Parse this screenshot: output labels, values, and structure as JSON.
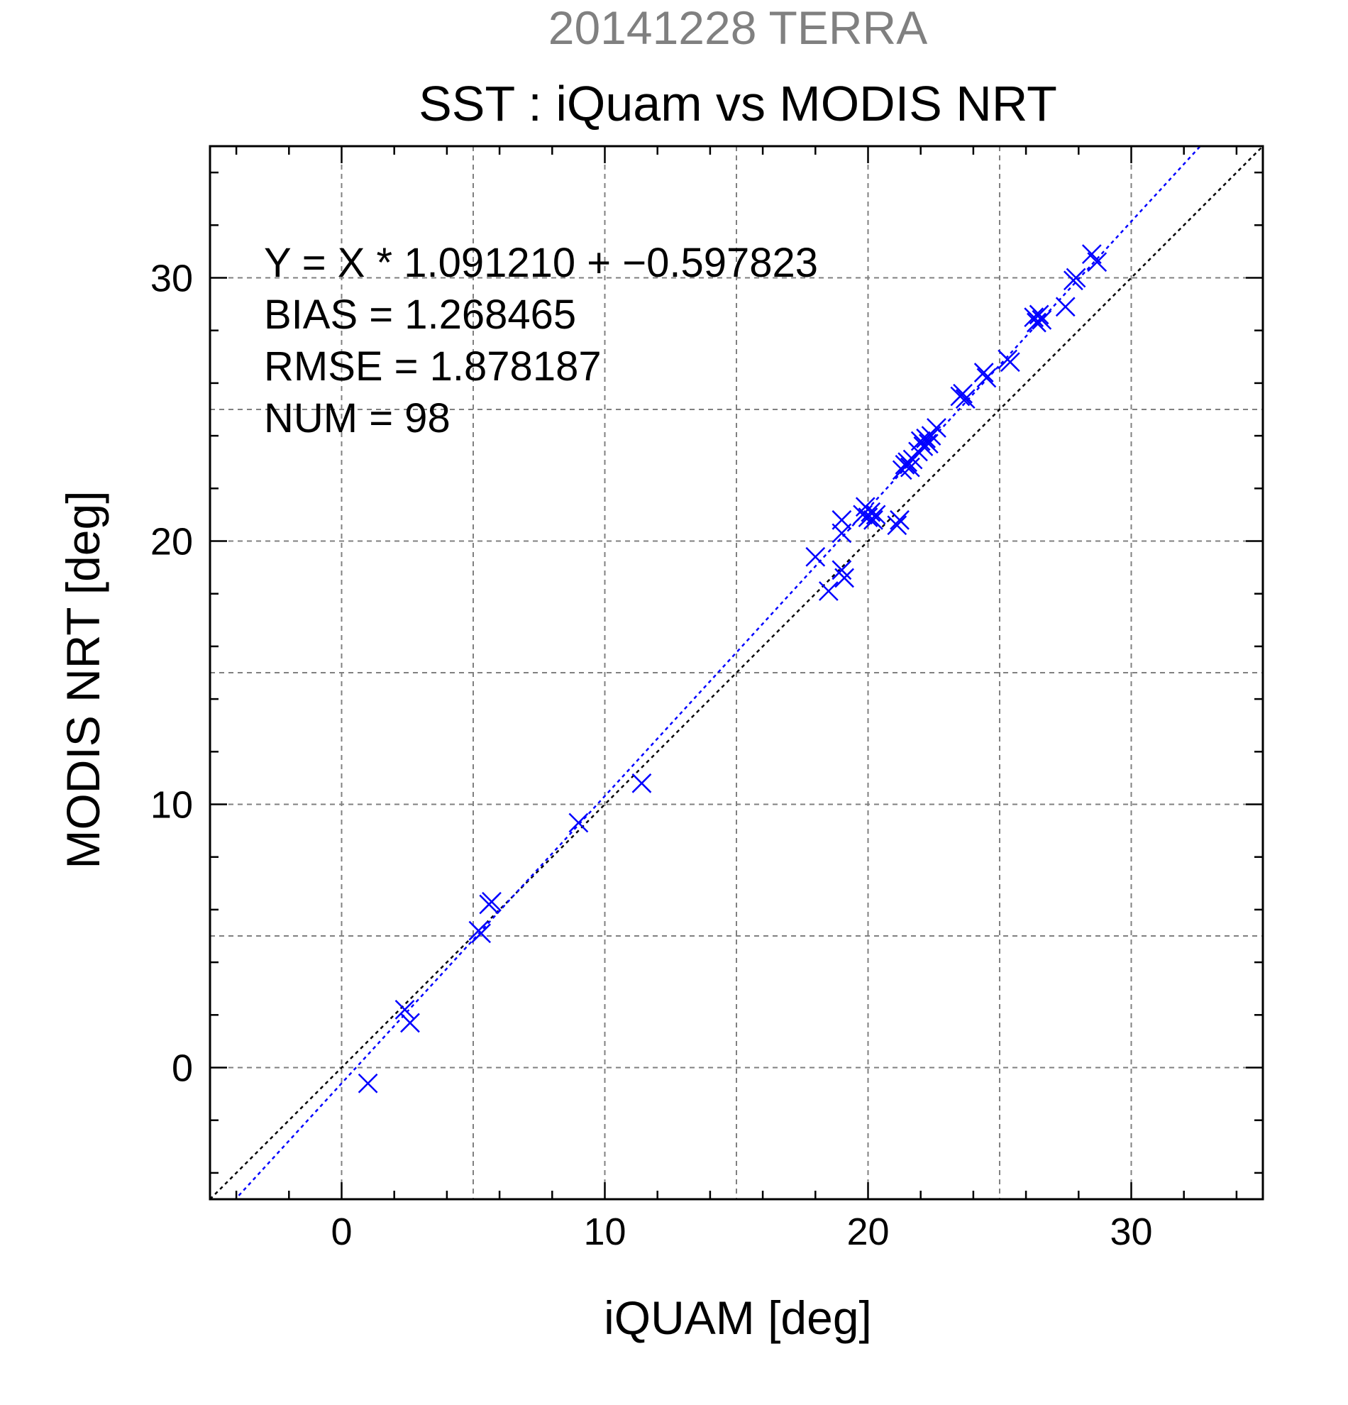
{
  "chart_data": {
    "type": "scatter",
    "supertitle": "20141228 TERRA",
    "title": "SST : iQuam vs MODIS NRT",
    "xlabel": "iQUAM [deg]",
    "ylabel": "MODIS NRT [deg]",
    "xlim": [
      -5,
      35
    ],
    "ylim": [
      -5,
      35
    ],
    "x_ticks": [
      0,
      10,
      20,
      30
    ],
    "y_ticks": [
      0,
      10,
      20,
      30
    ],
    "grid": true,
    "annotations": [
      "Y = X * 1.091210 + −0.597823",
      "BIAS = 1.268465",
      "RMSE = 1.878187",
      "NUM = 98"
    ],
    "regression": {
      "slope": 1.09121,
      "intercept": -0.597823
    },
    "identity_line": true,
    "colors": {
      "points": "#0000ff",
      "fit_line": "#0000ff",
      "identity_line": "#000000",
      "grid": "#808080",
      "supertitle": "#808080"
    },
    "series": [
      {
        "marker": "x",
        "points": [
          [
            1.0,
            -0.6
          ],
          [
            2.4,
            2.2
          ],
          [
            2.6,
            1.7
          ],
          [
            5.2,
            5.2
          ],
          [
            5.3,
            5.1
          ],
          [
            5.6,
            6.2
          ],
          [
            5.7,
            6.3
          ],
          [
            9.0,
            9.3
          ],
          [
            11.4,
            10.8
          ],
          [
            18.0,
            19.4
          ],
          [
            18.5,
            18.1
          ],
          [
            19.0,
            18.9
          ],
          [
            19.1,
            18.6
          ],
          [
            19.0,
            20.3
          ],
          [
            19.0,
            20.8
          ],
          [
            19.8,
            21.0
          ],
          [
            19.9,
            21.3
          ],
          [
            20.0,
            20.9
          ],
          [
            20.1,
            21.1
          ],
          [
            20.2,
            20.8
          ],
          [
            20.3,
            21.0
          ],
          [
            21.1,
            20.6
          ],
          [
            21.2,
            20.8
          ],
          [
            21.3,
            22.7
          ],
          [
            21.4,
            22.9
          ],
          [
            21.5,
            23.0
          ],
          [
            21.6,
            22.8
          ],
          [
            21.7,
            23.1
          ],
          [
            21.9,
            23.4
          ],
          [
            22.0,
            23.8
          ],
          [
            22.1,
            23.6
          ],
          [
            22.2,
            23.9
          ],
          [
            22.3,
            23.7
          ],
          [
            22.4,
            24.0
          ],
          [
            22.6,
            24.3
          ],
          [
            23.5,
            25.5
          ],
          [
            23.6,
            25.6
          ],
          [
            23.7,
            25.4
          ],
          [
            24.4,
            26.4
          ],
          [
            24.5,
            26.2
          ],
          [
            25.3,
            26.9
          ],
          [
            25.4,
            26.8
          ],
          [
            26.3,
            28.5
          ],
          [
            26.4,
            28.3
          ],
          [
            26.5,
            28.6
          ],
          [
            26.6,
            28.4
          ],
          [
            27.5,
            28.9
          ],
          [
            27.8,
            29.9
          ],
          [
            27.9,
            30.0
          ],
          [
            28.5,
            30.9
          ],
          [
            28.7,
            30.6
          ]
        ]
      }
    ]
  }
}
